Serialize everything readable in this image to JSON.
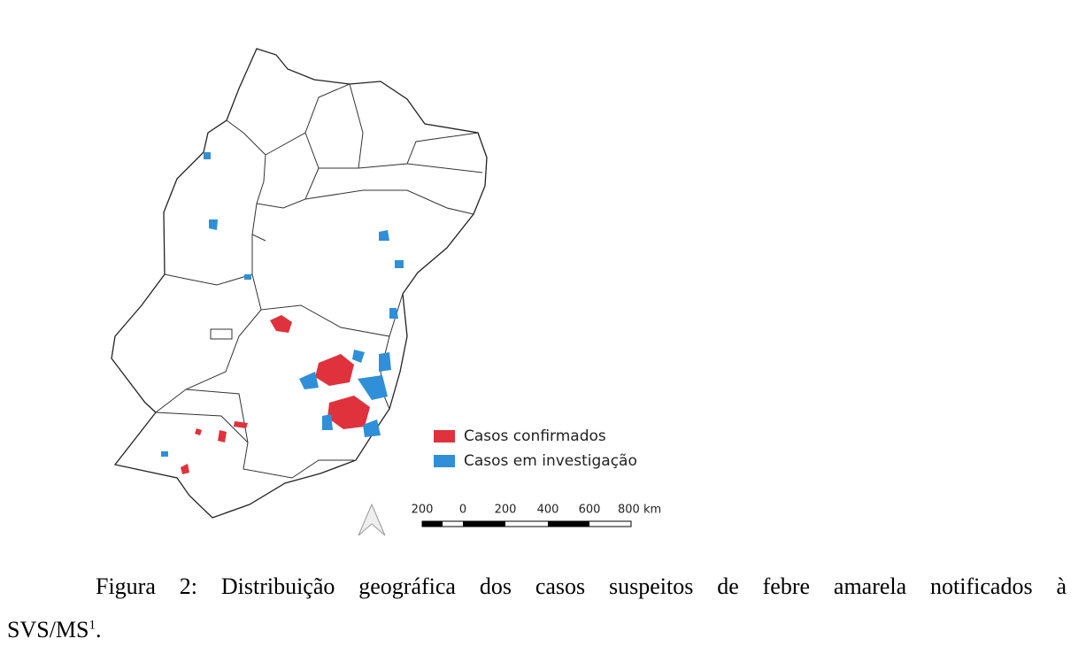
{
  "figure": {
    "legend": {
      "items": [
        {
          "label": "Casos confirmados",
          "color": "#e0323c"
        },
        {
          "label": "Casos em investigação",
          "color": "#2f8fd8"
        }
      ]
    },
    "scale_bar": {
      "labels": [
        "200",
        "0",
        "200",
        "400",
        "600",
        "800 km"
      ]
    }
  },
  "caption": {
    "lines": [
      "Figura 2: Distribuição geográfica dos casos suspeitos de febre amarela notificados à",
      "SVS/MS"
    ],
    "note": "1",
    "end": "."
  }
}
